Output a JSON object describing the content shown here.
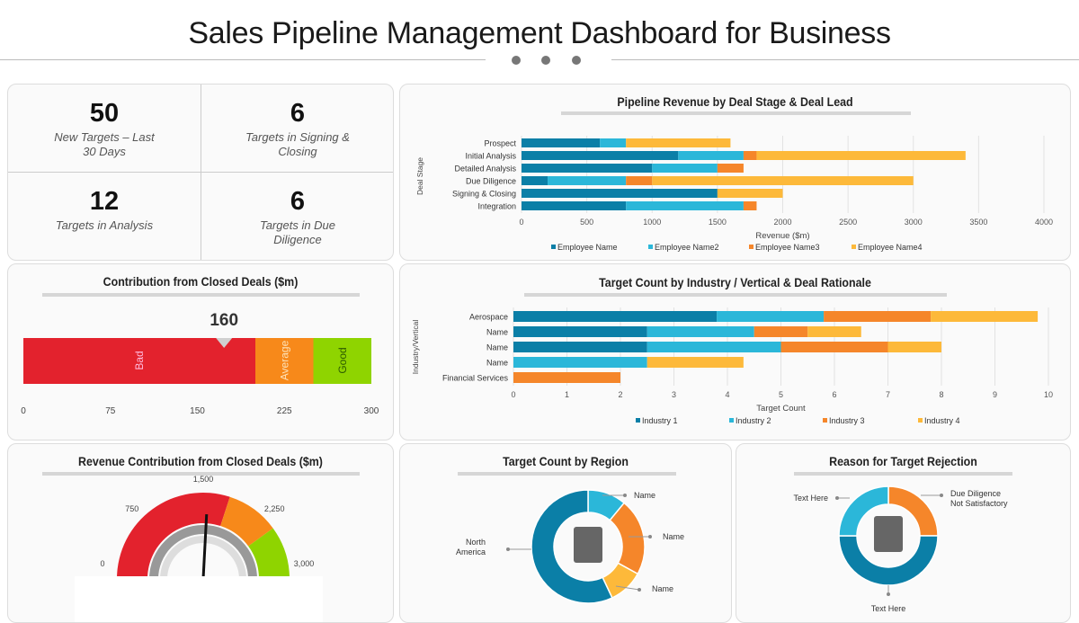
{
  "header": {
    "title": "Sales Pipeline Management Dashboard for Business"
  },
  "kpis": [
    {
      "value": "50",
      "label": "New Targets – Last 30 Days"
    },
    {
      "value": "6",
      "label": "Targets in Signing & Closing"
    },
    {
      "value": "12",
      "label": "Targets in Analysis"
    },
    {
      "value": "6",
      "label": "Targets in Due Diligence"
    }
  ],
  "colors": {
    "teal": "#0b7fa7",
    "cyan": "#2bb7d9",
    "orange": "#f5862a",
    "yellow": "#fdb93a",
    "red": "#e3222d",
    "amber": "#f7891a",
    "green": "#8fd400"
  },
  "chart_data": [
    {
      "id": "pipeline",
      "type": "bar",
      "orientation": "horizontal",
      "stacked": true,
      "title": "Pipeline Revenue by Deal Stage & Deal Lead",
      "xlabel": "Revenue ($m)",
      "ylabel": "Deal Stage",
      "xlim": [
        0,
        4000
      ],
      "xticks": [
        "0",
        "500",
        "1000",
        "1500",
        "2000",
        "2500",
        "3000",
        "3500",
        "4000"
      ],
      "categories": [
        "Prospect",
        "Initial Analysis",
        "Detailed Analysis",
        "Due Diligence",
        "Signing & Closing",
        "Integration"
      ],
      "series": [
        {
          "name": "Employee Name",
          "values": [
            600,
            1200,
            1000,
            200,
            1500,
            800
          ]
        },
        {
          "name": "Employee Name2",
          "values": [
            200,
            500,
            500,
            600,
            0,
            900
          ]
        },
        {
          "name": "Employee Name3",
          "values": [
            0,
            100,
            200,
            200,
            0,
            100
          ]
        },
        {
          "name": "Employee Name4",
          "values": [
            800,
            1600,
            0,
            2000,
            500,
            0
          ]
        }
      ],
      "grid": true,
      "legend": "bottom"
    },
    {
      "id": "industry",
      "type": "bar",
      "orientation": "horizontal",
      "stacked": true,
      "title": "Target Count by Industry / Vertical & Deal Rationale",
      "xlabel": "Target Count",
      "ylabel": "Industry/Vertical",
      "xlim": [
        0,
        10
      ],
      "xticks": [
        "0",
        "1",
        "2",
        "3",
        "4",
        "5",
        "6",
        "7",
        "8",
        "9",
        "10"
      ],
      "categories": [
        "Aerospace",
        "Name",
        "Name",
        "Name",
        "Financial Services"
      ],
      "series": [
        {
          "name": "Industry 1",
          "values": [
            3.8,
            2.5,
            2.5,
            0,
            0
          ]
        },
        {
          "name": "Industry 2",
          "values": [
            2,
            2,
            2.5,
            2.5,
            0
          ]
        },
        {
          "name": "Industry 3",
          "values": [
            2,
            1,
            2,
            0,
            2
          ]
        },
        {
          "name": "Industry 4",
          "values": [
            2,
            1,
            1,
            1.8,
            0
          ]
        }
      ],
      "grid": true,
      "legend": "bottom"
    },
    {
      "id": "closed",
      "type": "bullet",
      "title": "Contribution from Closed Deals ($m)",
      "value": 160,
      "range": [
        0,
        300
      ],
      "bands": [
        {
          "label": "Bad",
          "to": 200
        },
        {
          "label": "Average",
          "to": 250
        },
        {
          "label": "Good",
          "to": 300
        }
      ],
      "ticks": [
        "0",
        "75",
        "150",
        "225",
        "300"
      ]
    },
    {
      "id": "gauge",
      "type": "gauge",
      "title": "Revenue Contribution from Closed Deals ($m)",
      "range": [
        0,
        3000
      ],
      "value": 1550,
      "bands": [
        {
          "to": 1800,
          "color": "red"
        },
        {
          "to": 2400,
          "color": "orange"
        },
        {
          "to": 3000,
          "color": "green"
        }
      ],
      "ticks": [
        "0",
        "750",
        "1,500",
        "2,250",
        "3,000"
      ]
    },
    {
      "id": "region",
      "type": "pie",
      "donut": true,
      "title": "Target Count by Region",
      "slices": [
        {
          "label": "Name",
          "value": 11,
          "color": "cyan"
        },
        {
          "label": "Name",
          "value": 22,
          "color": "orange"
        },
        {
          "label": "Name",
          "value": 10,
          "color": "yellow"
        },
        {
          "label": "North America",
          "value": 57,
          "color": "teal"
        }
      ]
    },
    {
      "id": "rejection",
      "type": "pie",
      "donut": true,
      "title": "Reason for Target Rejection",
      "slices": [
        {
          "label": "Due Diligence Not Satisfactory",
          "value": 25,
          "color": "orange"
        },
        {
          "label": "Text Here",
          "value": 50,
          "color": "teal"
        },
        {
          "label": "Text Here",
          "value": 25,
          "color": "cyan"
        }
      ]
    }
  ]
}
